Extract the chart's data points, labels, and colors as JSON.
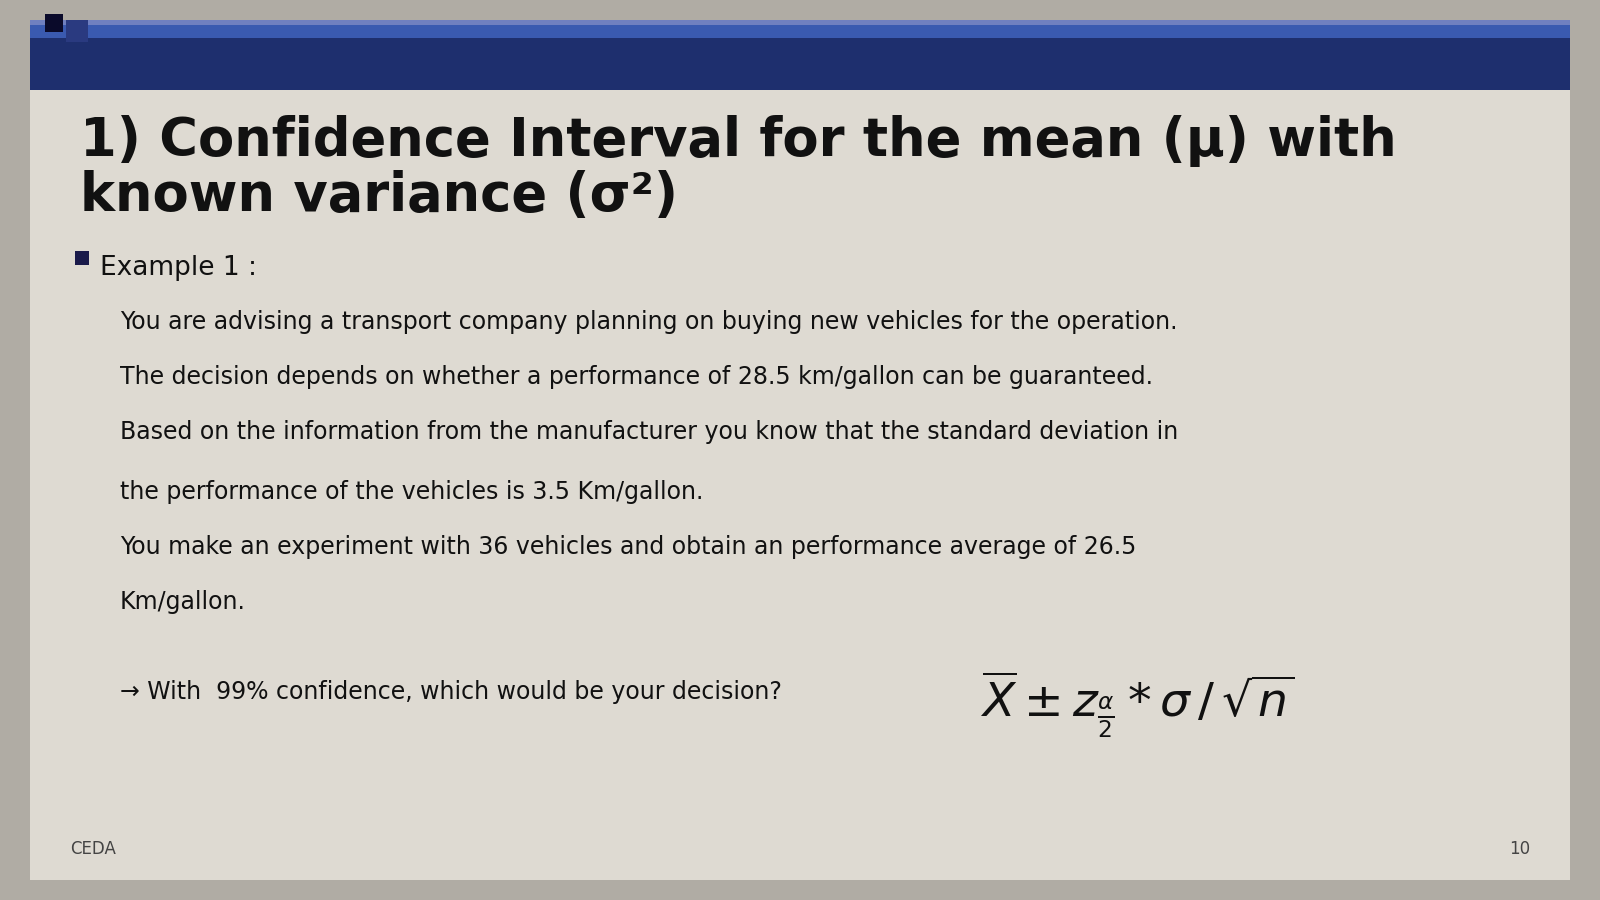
{
  "outer_bg": "#b0aca4",
  "slide_bg": "#dedad2",
  "header_dark_blue": "#1e2f6e",
  "header_mid_blue": "#3a5ab0",
  "header_light_blue": "#7080c0",
  "title_line1": "1) Confidence Interval for the mean (μ) with",
  "title_line2": "known variance (σ²)",
  "title_color": "#111111",
  "title_fontsize": 38,
  "bullet_label": "Example 1 :",
  "bullet_color": "#111111",
  "bullet_fontsize": 19,
  "body_lines": [
    "You are advising a transport company planning on buying new vehicles for the operation.",
    "The decision depends on whether a performance of 28.5 km/gallon can be guaranteed.",
    "Based on the information from the manufacturer you know that the standard deviation in",
    "the performance of the vehicles is 3.5 Km/gallon.",
    "You make an experiment with 36 vehicles and obtain an performance average of 26.5",
    "Km/gallon."
  ],
  "body_fontsize": 17,
  "body_color": "#111111",
  "arrow_text": "→ With  99% confidence, which would be your decision?",
  "formula_fontsize": 34,
  "footer_text": "CEDA",
  "footer_number": "10",
  "footer_fontsize": 12
}
